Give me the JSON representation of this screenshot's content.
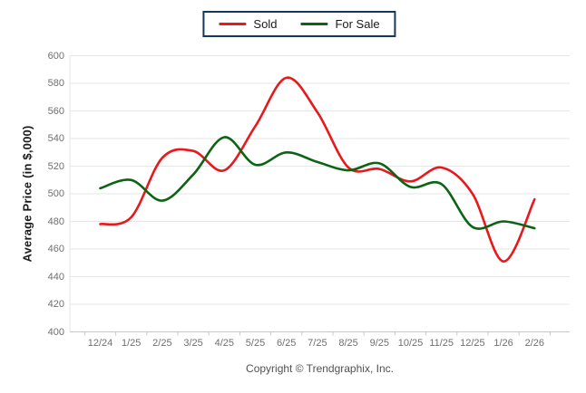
{
  "legend": {
    "items": [
      {
        "label": "Sold",
        "color": "#e8191c"
      },
      {
        "label": "For Sale",
        "color": "#0b6414"
      }
    ]
  },
  "y_axis": {
    "title": "Average Price (in $,000)"
  },
  "footer": {
    "copyright": "Copyright © Trendgraphix, Inc."
  },
  "colors": {
    "gridline": "#e6e6e6",
    "axis": "#c9c9c9",
    "sold": "#e8191c",
    "for_sale": "#0b6414"
  },
  "chart_data": {
    "type": "line",
    "title": "",
    "xlabel": "",
    "ylabel": "Average Price (in $,000)",
    "ylim": [
      400,
      600
    ],
    "ytick_step": 20,
    "grid": true,
    "legend_position": "top",
    "line_style": "smooth-spline",
    "categories": [
      "12/24",
      "1/25",
      "2/25",
      "3/25",
      "4/25",
      "5/25",
      "6/25",
      "7/25",
      "8/25",
      "9/25",
      "10/25",
      "11/25",
      "12/25",
      "1/26",
      "2/26"
    ],
    "series": [
      {
        "name": "Sold",
        "color": "#e8191c",
        "values": [
          478,
          483,
          526,
          531,
          517,
          549,
          584,
          559,
          519,
          518,
          509,
          519,
          500,
          451,
          496
        ]
      },
      {
        "name": "For Sale",
        "color": "#0b6414",
        "values": [
          504,
          510,
          495,
          514,
          541,
          521,
          530,
          523,
          517,
          522,
          505,
          507,
          476,
          480,
          475
        ]
      }
    ]
  }
}
